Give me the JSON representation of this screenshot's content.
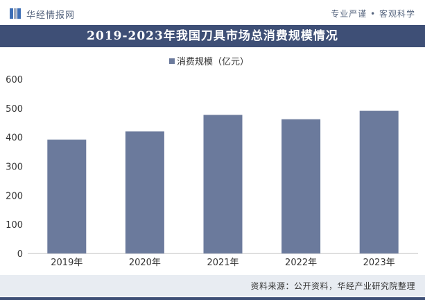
{
  "header": {
    "logo_text": "华经情报网",
    "tagline": "专业严谨 • 客观科学"
  },
  "colors": {
    "accent": "#3e4f76",
    "bar": "#6b7a9c",
    "logo_blue": "#3e6fb6",
    "logo_gray": "#9aa7bd"
  },
  "chart_data": {
    "type": "bar",
    "title": "2019-2023年我国刀具市场总消费规模情况",
    "categories": [
      "2019年",
      "2020年",
      "2021年",
      "2022年",
      "2023年"
    ],
    "series": [
      {
        "name": "消费规模（亿元）",
        "values": [
          392,
          420,
          477,
          462,
          491
        ]
      }
    ],
    "xlabel": "",
    "ylabel": "",
    "ylim": [
      0,
      600
    ],
    "yticks": [
      0,
      100,
      200,
      300,
      400,
      500,
      600
    ],
    "grid": false,
    "legend": "top-center"
  },
  "footer": {
    "source": "资料来源：公开资料，华经产业研究院整理"
  }
}
